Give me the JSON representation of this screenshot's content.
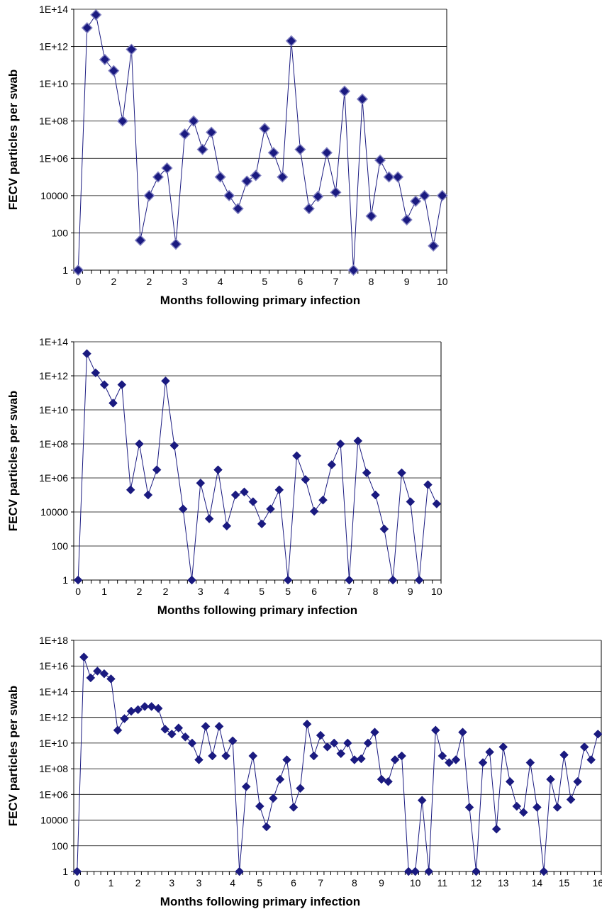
{
  "chart_data": [
    {
      "type": "line",
      "xlabel": "Months following primary infection",
      "ylabel": "FECV particles per swab",
      "y_scale": "log",
      "ylim": [
        1,
        100000000000000.0
      ],
      "yticks": [
        "1",
        "100",
        "10000",
        "1E+06",
        "1E+08",
        "1E+10",
        "1E+12",
        "1E+14"
      ],
      "xticks": [
        "0",
        "2",
        "2",
        "3",
        "4",
        "5",
        "6",
        "7",
        "8",
        "9",
        "10"
      ],
      "grid": true,
      "marker": "diamond",
      "color": "#1a1a80",
      "values": [
        1,
        10000000000000.0,
        50000000000000.0,
        200000000000.0,
        50000000000.0,
        100000000.0,
        700000000000.0,
        40,
        10000.0,
        100000.0,
        300000.0,
        25,
        20000000.0,
        100000000.0,
        3000000.0,
        25000000.0,
        100000.0,
        10000.0,
        2000.0,
        60000.0,
        120000.0,
        40000000.0,
        2000000.0,
        100000.0,
        2000000000000.0,
        3000000.0,
        2000.0,
        9000.0,
        2000000.0,
        15000.0,
        4000000000.0,
        1,
        1500000000.0,
        800,
        800000.0,
        100000.0,
        100000.0,
        500,
        5000.0,
        10000.0,
        20,
        10000.0
      ]
    },
    {
      "type": "line",
      "xlabel": "Months following primary infection",
      "ylabel": "FECV particles per swab",
      "y_scale": "log",
      "ylim": [
        1,
        100000000000000.0
      ],
      "yticks": [
        "1",
        "100",
        "10000",
        "1E+06",
        "1E+08",
        "1E+10",
        "1E+12",
        "1E+14"
      ],
      "xticks": [
        "0",
        "1",
        "2",
        "2",
        "3",
        "4",
        "5",
        "5",
        "6",
        "7",
        "8",
        "9",
        "10"
      ],
      "grid": true,
      "marker": "diamond",
      "color": "#1a1a80",
      "values": [
        1,
        20000000000000.0,
        1500000000000.0,
        300000000000.0,
        25000000000.0,
        300000000000.0,
        200000.0,
        100000000.0,
        100000.0,
        3000000.0,
        500000000000.0,
        80000000.0,
        15000.0,
        1,
        500000.0,
        4000.0,
        3000000.0,
        1500.0,
        100000.0,
        150000.0,
        40000.0,
        2000.0,
        15000.0,
        200000.0,
        1,
        20000000.0,
        800000.0,
        11000.0,
        50000.0,
        6000000.0,
        100000000.0,
        1,
        150000000.0,
        2000000.0,
        100000.0,
        1000.0,
        1,
        2000000.0,
        40000.0,
        1,
        400000.0,
        30000.0
      ]
    },
    {
      "type": "line",
      "xlabel": "Months following primary infection",
      "ylabel": "FECV particles per swab",
      "y_scale": "log",
      "ylim": [
        1,
        1e+18
      ],
      "yticks": [
        "1",
        "100",
        "10000",
        "1E+06",
        "1E+08",
        "1E+10",
        "1E+12",
        "1E+14",
        "1E+16",
        "1E+18"
      ],
      "xticks": [
        "0",
        "1",
        "2",
        "3",
        "3",
        "4",
        "5",
        "6",
        "7",
        "8",
        "9",
        "10",
        "11",
        "12",
        "13",
        "14",
        "15",
        "16"
      ],
      "grid": true,
      "marker": "diamond",
      "color": "#1a1a80",
      "values": [
        1,
        5e+16,
        1200000000000000.0,
        4000000000000000.0,
        2500000000000000.0,
        1000000000000000.0,
        100000000000.0,
        800000000000.0,
        3000000000000.0,
        4000000000000.0,
        7000000000000.0,
        7000000000000.0,
        5000000000000.0,
        120000000000.0,
        50000000000.0,
        150000000000.0,
        30000000000.0,
        10000000000.0,
        500000000.0,
        200000000000.0,
        1000000000.0,
        200000000000.0,
        1000000000.0,
        15000000000.0,
        1,
        4000000.0,
        1000000000.0,
        120000.0,
        3000.0,
        500000.0,
        15000000.0,
        500000000.0,
        100000.0,
        3000000.0,
        300000000000.0,
        1000000000.0,
        40000000000.0,
        5000000000.0,
        10000000000.0,
        1500000000.0,
        10000000000.0,
        500000000.0,
        600000000.0,
        10000000000.0,
        70000000000.0,
        15000000.0,
        10000000.0,
        500000000.0,
        1000000000.0,
        1,
        1,
        350000.0,
        1,
        100000000000.0,
        1000000000.0,
        300000000.0,
        500000000.0,
        70000000000.0,
        100000.0,
        1,
        300000000.0,
        2000000000.0,
        2000.0,
        5000000000.0,
        10000000.0,
        120000.0,
        40000.0,
        300000000.0,
        100000.0,
        1,
        15000000.0,
        100000.0,
        1200000000.0,
        400000.0,
        10000000.0,
        5000000000.0,
        500000000.0,
        50000000000.0
      ]
    }
  ]
}
